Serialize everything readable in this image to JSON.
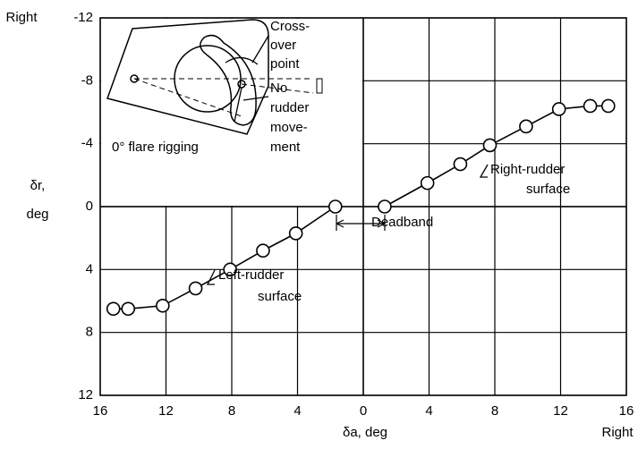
{
  "chart_data": {
    "type": "line",
    "y_label": [
      "δr,",
      "deg"
    ],
    "x_label": "δa, deg",
    "axis_notes": [
      "Right",
      "Right"
    ],
    "xlim": [
      -16,
      16
    ],
    "xticks": [
      {
        "value": -16,
        "label": "16"
      },
      {
        "value": -12,
        "label": "12"
      },
      {
        "value": -8,
        "label": "8"
      },
      {
        "value": -4,
        "label": "4"
      },
      0,
      4,
      8,
      12,
      16
    ],
    "ylim": [
      12,
      -12
    ],
    "yticks": [
      -12,
      -8,
      -4,
      0,
      4,
      8,
      12
    ],
    "grid": true,
    "series": [
      {
        "color": "#000000",
        "x": [
          -15.2,
          -14.3,
          -12.2,
          -10.2,
          -8.1,
          -6.1,
          -4.1,
          -1.7
        ],
        "values": [
          6.5,
          6.5,
          6.3,
          5.2,
          4.0,
          2.8,
          1.7,
          0
        ]
      },
      {
        "color": "#000000",
        "x": [
          1.3,
          3.9,
          5.9,
          7.7,
          9.9,
          11.9,
          13.8,
          14.9
        ],
        "values": [
          0,
          -1.5,
          -2.7,
          -3.9,
          -5.1,
          -6.2,
          -6.4,
          -6.4
        ]
      }
    ],
    "annotations": [
      [
        "Deadband"
      ],
      [
        "Left-rudder",
        "surface"
      ],
      [
        "Right-rudder",
        "surface"
      ],
      [
        "Cross-",
        "over",
        "point"
      ],
      [
        "No",
        "rudder",
        "move-",
        "ment"
      ],
      [
        "0° flare rigging"
      ]
    ]
  }
}
